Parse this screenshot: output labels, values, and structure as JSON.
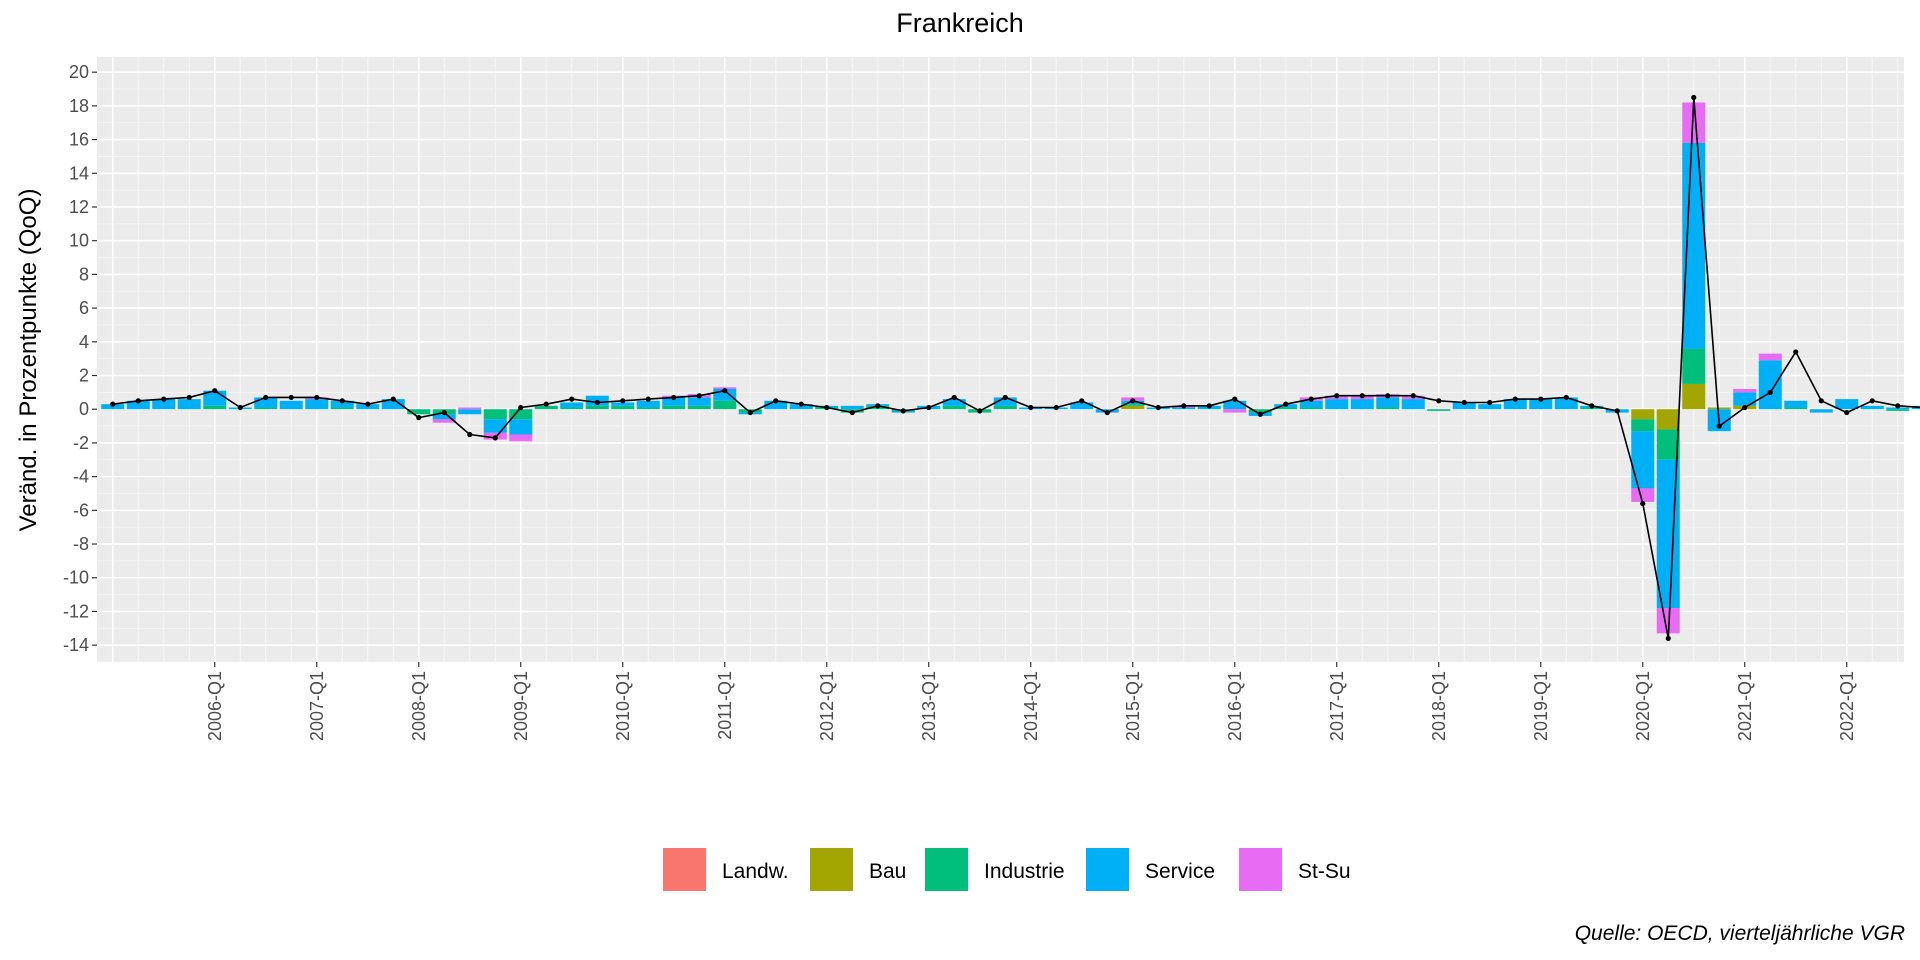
{
  "chart_data": {
    "type": "bar",
    "title": "Frankreich",
    "xlabel": "",
    "ylabel": "Veränd. in Prozentpunkte (QoQ)",
    "caption": "Quelle: OECD, vierteljährliche VGR",
    "ylim": [
      -15,
      20
    ],
    "y_ticks": [
      20,
      18,
      16,
      14,
      12,
      10,
      8,
      6,
      4,
      2,
      0,
      -2,
      -4,
      -6,
      -8,
      -10,
      -12,
      -14
    ],
    "x_tick_labels": [
      "2006-Q1",
      "2007-Q1",
      "2008-Q1",
      "2009-Q1",
      "2010-Q1",
      "2011-Q1",
      "2012-Q1",
      "2013-Q1",
      "2014-Q1",
      "2015-Q1",
      "2016-Q1",
      "2017-Q1",
      "2018-Q1",
      "2019-Q1",
      "2020-Q1",
      "2021-Q1",
      "2022-Q1"
    ],
    "grid": true,
    "stacked": true,
    "legend_position": "bottom",
    "colors": {
      "Landw.": "#F8766D",
      "Bau": "#A3A500",
      "Industrie": "#00BF7D",
      "Service": "#00B0F6",
      "St-Su": "#E76BF3"
    },
    "categories": [
      "2005-Q1",
      "2005-Q2",
      "2005-Q3",
      "2005-Q4",
      "2006-Q1",
      "2006-Q2",
      "2006-Q3",
      "2006-Q4",
      "2007-Q1",
      "2007-Q2",
      "2007-Q3",
      "2007-Q4",
      "2008-Q1",
      "2008-Q2",
      "2008-Q3",
      "2008-Q4",
      "2009-Q1",
      "2009-Q2",
      "2009-Q3",
      "2009-Q4",
      "2010-Q1",
      "2010-Q2",
      "2010-Q3",
      "2010-Q4",
      "2011-Q1",
      "2011-Q2",
      "2011-Q3",
      "2011-Q4",
      "2012-Q1",
      "2012-Q2",
      "2012-Q3",
      "2012-Q4",
      "2013-Q1",
      "2013-Q2",
      "2013-Q3",
      "2013-Q4",
      "2014-Q1",
      "2014-Q2",
      "2014-Q3",
      "2014-Q4",
      "2015-Q1",
      "2015-Q2",
      "2015-Q3",
      "2015-Q4",
      "2016-Q1",
      "2016-Q2",
      "2016-Q3",
      "2016-Q4",
      "2017-Q1",
      "2017-Q2",
      "2017-Q3",
      "2017-Q4",
      "2018-Q1",
      "2018-Q2",
      "2018-Q3",
      "2018-Q4",
      "2019-Q1",
      "2019-Q2",
      "2019-Q3",
      "2019-Q4",
      "2020-Q1",
      "2020-Q2",
      "2020-Q3",
      "2020-Q4",
      "2021-Q1",
      "2021-Q2",
      "2021-Q3",
      "2021-Q4",
      "2022-Q1",
      "2022-Q2",
      "2022-Q3",
      "2022-Q4"
    ],
    "series": [
      {
        "name": "Landw.",
        "values": [
          0,
          0,
          0,
          0,
          0,
          0,
          0,
          0,
          0,
          0,
          0,
          0,
          0,
          0,
          0,
          0,
          0,
          0,
          0,
          0,
          0,
          0,
          0,
          0,
          0,
          0,
          0,
          0,
          0,
          0,
          0,
          0,
          0,
          0,
          0,
          0,
          0,
          0,
          0,
          0,
          0,
          0,
          0,
          0,
          0,
          0,
          0,
          0,
          0,
          0,
          0,
          0,
          0,
          0,
          0,
          0,
          0,
          0,
          0,
          0,
          0,
          0,
          0,
          0,
          0,
          0,
          0,
          0,
          0,
          0,
          0,
          0
        ]
      },
      {
        "name": "Bau",
        "values": [
          0,
          0,
          0,
          0,
          0,
          0,
          0,
          0,
          0,
          0,
          0,
          0,
          0,
          0,
          0,
          0,
          0,
          0,
          0,
          0,
          0,
          0,
          0,
          0,
          0,
          0,
          0,
          0,
          0,
          0,
          0,
          0,
          0,
          0,
          0,
          0,
          0,
          0,
          0,
          0,
          0.2,
          0,
          0,
          0,
          0,
          0,
          0,
          0,
          0,
          0,
          0,
          0,
          0,
          0,
          0,
          0,
          0,
          0,
          0,
          0,
          -0.6,
          -1.2,
          1.5,
          0.1,
          0.2,
          0,
          0,
          0,
          0,
          0,
          0,
          0
        ]
      },
      {
        "name": "Industrie",
        "values": [
          0,
          0,
          0,
          0,
          0.2,
          0,
          0.1,
          0,
          0,
          0.1,
          0,
          0,
          -0.3,
          -0.3,
          0,
          -0.6,
          -0.6,
          0.2,
          0.1,
          0.2,
          0.2,
          0.1,
          0.2,
          0.2,
          0.5,
          -0.2,
          0,
          0,
          0.1,
          -0.2,
          0.2,
          -0.1,
          0,
          0.2,
          -0.2,
          0.2,
          0,
          0,
          0,
          0,
          0.1,
          0,
          0,
          0,
          0,
          -0.2,
          0.1,
          0.1,
          0,
          0,
          0.1,
          0,
          -0.1,
          0,
          0,
          0,
          0,
          0,
          0.1,
          0,
          -0.7,
          -1.8,
          2.1,
          0,
          0,
          0,
          0.1,
          0,
          0,
          0,
          -0.1,
          0
        ]
      },
      {
        "name": "Service",
        "values": [
          0.3,
          0.5,
          0.6,
          0.6,
          0.9,
          0.1,
          0.6,
          0.5,
          0.6,
          0.4,
          0.3,
          0.6,
          0,
          -0.3,
          -0.3,
          -0.8,
          -0.9,
          0,
          0.3,
          0.6,
          0.2,
          0.4,
          0.5,
          0.5,
          0.7,
          -0.1,
          0.5,
          0.3,
          0.1,
          0.2,
          0.1,
          -0.1,
          0.2,
          0.4,
          0,
          0.5,
          0.1,
          0.1,
          0.4,
          -0.2,
          0.2,
          0.1,
          0.1,
          0.2,
          0.5,
          -0.2,
          0.2,
          0.4,
          0.6,
          0.6,
          0.6,
          0.6,
          0,
          0.4,
          0.3,
          0.6,
          0.6,
          0.7,
          0.1,
          -0.2,
          -3.4,
          -8.8,
          12.2,
          -1.3,
          0.8,
          2.9,
          0.4,
          -0.2,
          0.6,
          0.2,
          0.1,
          0.2
        ]
      },
      {
        "name": "St-Su",
        "values": [
          0,
          0,
          0,
          0,
          0,
          0,
          0,
          0,
          0.1,
          0,
          0,
          0,
          0,
          -0.2,
          0.1,
          -0.4,
          -0.4,
          0,
          0,
          0,
          0,
          0,
          0.1,
          0.2,
          0.1,
          0,
          0,
          0,
          0,
          0,
          0,
          0,
          0,
          0,
          0,
          0,
          0,
          0,
          0,
          0,
          0.2,
          0,
          0.1,
          0,
          -0.2,
          0,
          0,
          0.2,
          0.2,
          0.2,
          0.2,
          0.2,
          0,
          0,
          0,
          0,
          0,
          0,
          0,
          0,
          -0.8,
          -1.5,
          2.4,
          0,
          0.2,
          0.4,
          0,
          0,
          0,
          0,
          0,
          0
        ]
      }
    ],
    "total_line": {
      "name": "Total",
      "values": [
        0.3,
        0.5,
        0.6,
        0.7,
        1.1,
        0.1,
        0.7,
        0.7,
        0.7,
        0.5,
        0.3,
        0.6,
        -0.5,
        -0.2,
        -1.5,
        -1.7,
        0.1,
        0.3,
        0.6,
        0.4,
        0.5,
        0.6,
        0.7,
        0.8,
        1.1,
        -0.2,
        0.5,
        0.3,
        0.1,
        -0.2,
        0.2,
        -0.1,
        0.1,
        0.7,
        -0.1,
        0.7,
        0.1,
        0.1,
        0.5,
        -0.2,
        0.5,
        0.1,
        0.2,
        0.2,
        0.6,
        -0.3,
        0.3,
        0.6,
        0.8,
        0.8,
        0.8,
        0.8,
        0.5,
        0.4,
        0.4,
        0.6,
        0.6,
        0.7,
        0.2,
        -0.1,
        -5.6,
        -13.6,
        18.5,
        -1.0,
        0.1,
        1.0,
        3.4,
        0.5,
        -0.2,
        0.5,
        0.2,
        0.1
      ]
    }
  }
}
